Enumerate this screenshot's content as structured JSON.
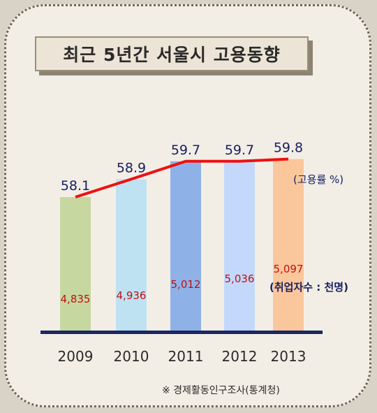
{
  "title": "최근 5년간 서울시 고용동향",
  "source_note": "※ 경제활동인구조사(통계청)",
  "colors": {
    "background": "#f2eee6",
    "employment_line": "#ee1111",
    "rate_label": "#1a2060",
    "count_label": "#c01010",
    "baseline": "#1c2660",
    "bars": [
      "#c6d8a0",
      "#bfe2f2",
      "#8eb2e8",
      "#c3d8fb",
      "#fac79c"
    ]
  },
  "chart_data": {
    "type": "bar",
    "categories": [
      "2009",
      "2010",
      "2011",
      "2012",
      "2013"
    ],
    "series": [
      {
        "name": "고용률 %",
        "values": [
          58.1,
          58.9,
          59.7,
          59.7,
          59.8
        ],
        "labels": [
          "58.1",
          "58.9",
          "59.7",
          "59.7",
          "59.8"
        ]
      },
      {
        "name": "취업자수 : 천명",
        "values": [
          4835,
          4936,
          5012,
          5036,
          5097
        ],
        "labels": [
          "4,835",
          "4,936",
          "5,012",
          "5,036",
          "5,097"
        ]
      }
    ],
    "rate_unit_label": "(고용률 %)",
    "count_unit_label": "(취업자수 : 천명)",
    "grid": false
  }
}
